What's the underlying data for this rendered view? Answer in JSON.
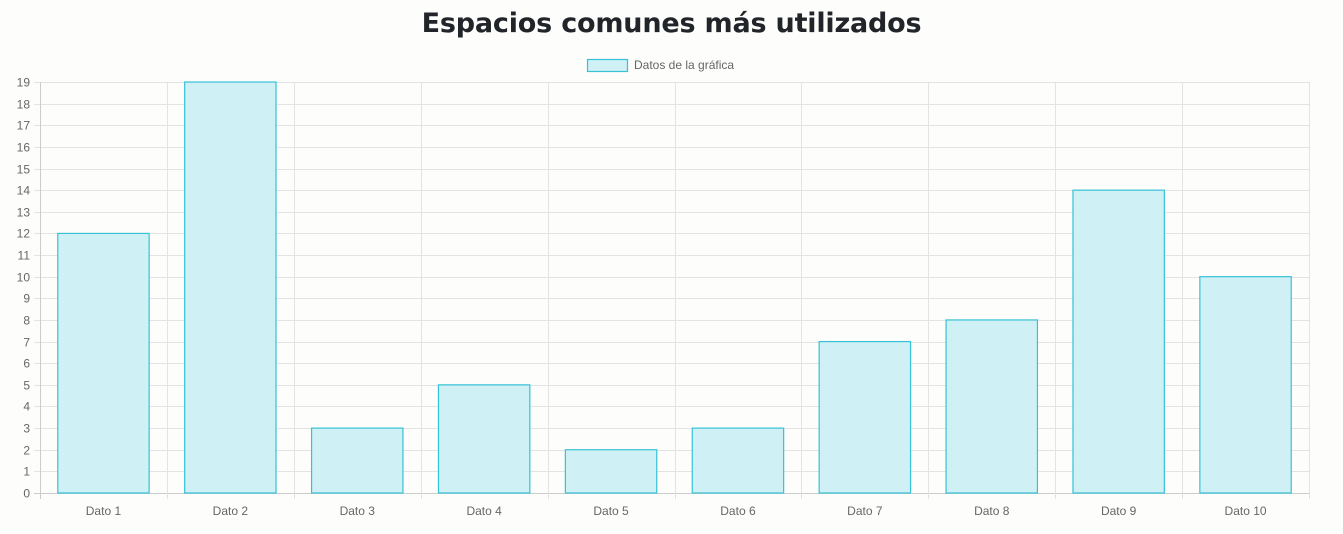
{
  "page": {
    "title": "Espacios comunes más utilizados"
  },
  "chart_data": {
    "type": "bar",
    "categories": [
      "Dato 1",
      "Dato 2",
      "Dato 3",
      "Dato 4",
      "Dato 5",
      "Dato 6",
      "Dato 7",
      "Dato 8",
      "Dato 9",
      "Dato 10"
    ],
    "series": [
      {
        "name": "Datos de la gráfica",
        "values": [
          12,
          19,
          3,
          5,
          2,
          3,
          7,
          8,
          14,
          10
        ]
      }
    ],
    "ylim": [
      0,
      19
    ],
    "yticks": [
      0,
      1,
      2,
      3,
      4,
      5,
      6,
      7,
      8,
      9,
      10,
      11,
      12,
      13,
      14,
      15,
      16,
      17,
      18,
      19
    ],
    "grid": true,
    "legend": "top-center",
    "colors": {
      "bar_fill": "#cff0f4",
      "bar_border": "#36c2d6",
      "grid": "#e3e3e3",
      "axis": "#cccccc"
    }
  }
}
